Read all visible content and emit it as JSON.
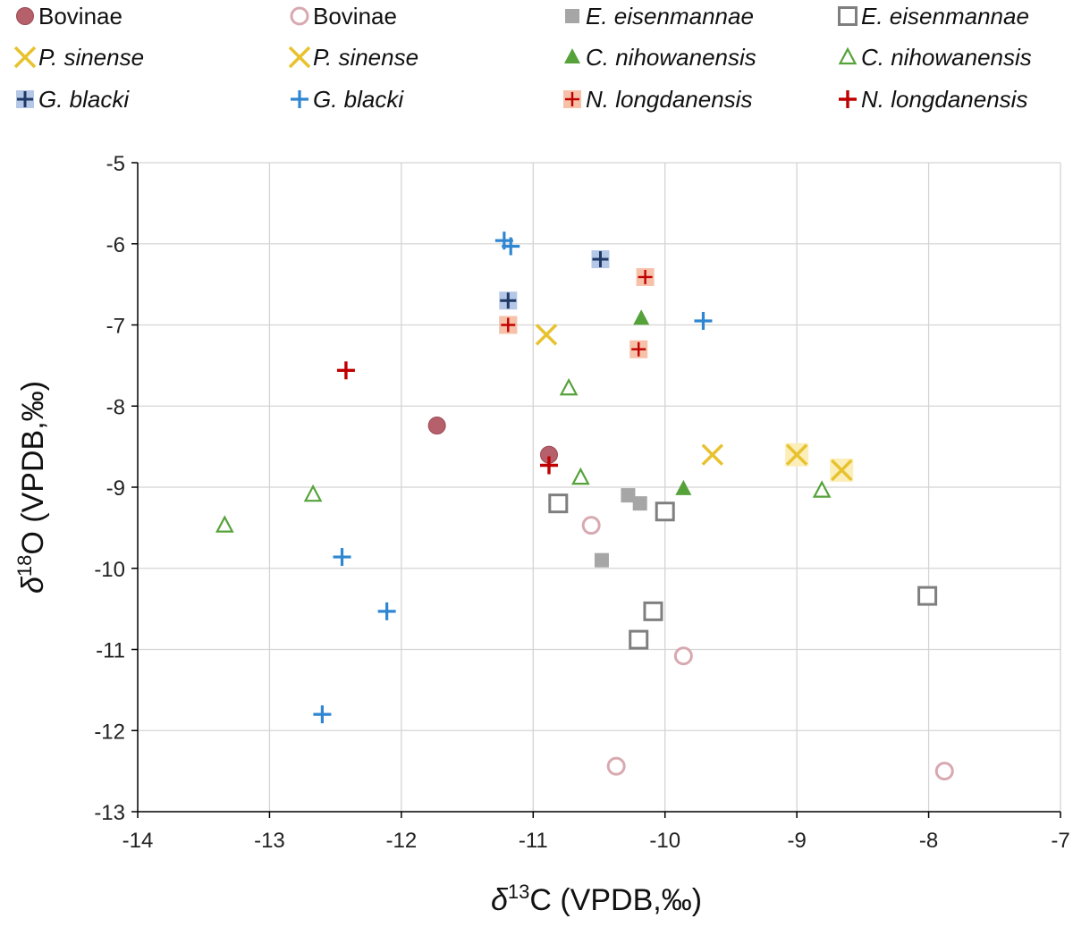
{
  "chart_data": {
    "type": "scatter",
    "title": "",
    "xlabel": {
      "prefix": "δ",
      "sup": "13",
      "rest": "C (VPDB,‰)"
    },
    "ylabel": {
      "prefix": "δ",
      "sup": "18",
      "rest": "O (VPDB,‰)"
    },
    "xlim": [
      -14,
      -7
    ],
    "ylim": [
      -13,
      -5
    ],
    "xticks": [
      -14,
      -13,
      -12,
      -11,
      -10,
      -9,
      -8,
      -7
    ],
    "yticks": [
      -13,
      -12,
      -11,
      -10,
      -9,
      -8,
      -7,
      -6,
      -5
    ],
    "grid": true,
    "legend_position": "top",
    "colors": {
      "bovinae": "#b5606a",
      "bovinae_open": "#d8a9b0",
      "eisen_fill": "#a6a6a6",
      "eisen_open": "#7f7f7f",
      "sinense": "#e8c22e",
      "sinense_bg": "#fbeeb8",
      "nihow": "#55a23a",
      "blacki_dark": "#1f3864",
      "blacki_bg": "#b4c7e7",
      "blacki_light": "#2f86d1",
      "longdan": "#c00000",
      "longdan_bg": "#f6c1a8"
    },
    "series": [
      {
        "name": "Bovinae",
        "italic": false,
        "marker": "circle-filled",
        "points": [
          [
            -11.73,
            -8.24
          ],
          [
            -10.88,
            -8.6
          ]
        ]
      },
      {
        "name": "Bovinae",
        "italic": false,
        "marker": "circle-open",
        "points": [
          [
            -10.56,
            -9.47
          ],
          [
            -9.86,
            -11.08
          ],
          [
            -10.37,
            -12.44
          ],
          [
            -7.88,
            -12.5
          ]
        ]
      },
      {
        "name": "E. eisenmannae",
        "italic": true,
        "marker": "square-filled",
        "points": [
          [
            -10.28,
            -9.1
          ],
          [
            -10.19,
            -9.2
          ],
          [
            -10.48,
            -9.9
          ]
        ]
      },
      {
        "name": "E. eisenmannae",
        "italic": true,
        "marker": "square-open",
        "points": [
          [
            -10.81,
            -9.2
          ],
          [
            -10.0,
            -9.3
          ],
          [
            -10.09,
            -10.53
          ],
          [
            -10.2,
            -10.88
          ],
          [
            -8.01,
            -10.34
          ]
        ]
      },
      {
        "name": "P. sinense",
        "italic": true,
        "marker": "x-boxed",
        "points": [
          [
            -9.0,
            -8.6
          ],
          [
            -8.66,
            -8.79
          ]
        ]
      },
      {
        "name": "P. sinense",
        "italic": true,
        "marker": "x",
        "points": [
          [
            -10.9,
            -7.12
          ],
          [
            -9.64,
            -8.6
          ]
        ]
      },
      {
        "name": "C. nihowanensis",
        "italic": true,
        "marker": "triangle-filled",
        "points": [
          [
            -10.18,
            -6.92
          ],
          [
            -9.86,
            -9.02
          ]
        ]
      },
      {
        "name": "C. nihowanensis",
        "italic": true,
        "marker": "triangle-open",
        "points": [
          [
            -10.73,
            -7.78
          ],
          [
            -10.64,
            -8.88
          ],
          [
            -12.67,
            -9.09
          ],
          [
            -13.34,
            -9.47
          ],
          [
            -8.81,
            -9.04
          ]
        ]
      },
      {
        "name": "G. blacki",
        "italic": true,
        "marker": "plus-boxed",
        "points": [
          [
            -10.49,
            -6.19
          ],
          [
            -11.19,
            -6.7
          ],
          [
            -11.19,
            -7.0
          ]
        ]
      },
      {
        "name": "G. blacki",
        "italic": true,
        "marker": "plus",
        "points": [
          [
            -11.22,
            -5.96
          ],
          [
            -11.17,
            -6.03
          ],
          [
            -9.71,
            -6.95
          ],
          [
            -12.45,
            -9.86
          ],
          [
            -12.11,
            -10.53
          ],
          [
            -12.6,
            -11.8
          ]
        ]
      },
      {
        "name": "N. longdanensis",
        "italic": true,
        "marker": "plus-boxed-red",
        "points": [
          [
            -10.15,
            -6.41
          ],
          [
            -10.2,
            -7.3
          ],
          [
            -11.19,
            -7.0
          ]
        ]
      },
      {
        "name": "N. longdanensis",
        "italic": true,
        "marker": "plus-red",
        "points": [
          [
            -12.42,
            -7.56
          ],
          [
            -10.88,
            -8.73
          ]
        ]
      }
    ]
  }
}
